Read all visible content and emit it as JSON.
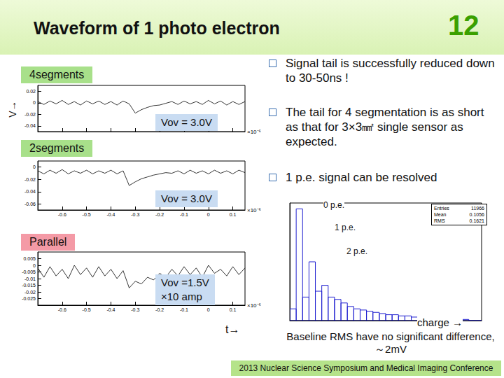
{
  "slide": {
    "title": "Waveform of 1 photo electron",
    "page": "12",
    "bullets": [
      "Signal tail is successfully reduced down to 30-50ns !",
      "The tail for 4 segmentation is as short as that for 3×3㎟ single sensor as expected.",
      "1 p.e. signal can be resolved"
    ],
    "v_arrow": "V→",
    "t_arrow": "t→",
    "note": "Baseline RMS have no significant difference, ～2mV",
    "footer": "2013 Nuclear Science Symposium and Medical Imaging Conference"
  },
  "chart_data": [
    {
      "type": "line",
      "title": "4segments",
      "annotation": [
        "Vov = 3.0V"
      ],
      "x_exponent": "×10⁻⁶",
      "color": "#000000",
      "grid": false,
      "tick_labels": "y",
      "x": [
        -0.7,
        -0.675,
        -0.65,
        -0.625,
        -0.6,
        -0.575,
        -0.55,
        -0.525,
        -0.5,
        -0.475,
        -0.45,
        -0.425,
        -0.4,
        -0.375,
        -0.35,
        -0.325,
        -0.3,
        -0.275,
        -0.25,
        -0.225,
        -0.2,
        -0.175,
        -0.15,
        -0.125,
        -0.1,
        -0.075,
        -0.05,
        -0.025,
        0,
        0.025,
        0.05,
        0.075,
        0.1,
        0.125,
        0.15
      ],
      "values": [
        0.002,
        -0.003,
        0.003,
        -0.002,
        0.004,
        -0.003,
        0.002,
        -0.004,
        0.003,
        -0.002,
        0.003,
        -0.003,
        0.002,
        -0.004,
        0.003,
        -0.002,
        -0.018,
        -0.012,
        -0.008,
        -0.005,
        -0.004,
        -0.001,
        0.002,
        -0.003,
        0.003,
        -0.002,
        0.002,
        -0.003,
        0.004,
        -0.002,
        0.003,
        -0.004,
        0.002,
        -0.003,
        0.002
      ],
      "xlim": [
        -0.7,
        0.15
      ],
      "xticks": [
        -0.6,
        -0.5,
        -0.4,
        -0.3,
        -0.2,
        -0.1,
        0,
        0.1
      ],
      "ylim": [
        -0.05,
        0.03
      ],
      "yticks": [
        0.02,
        0,
        -0.02,
        -0.04
      ]
    },
    {
      "type": "line",
      "title": "2segments",
      "annotation": [
        "Vov = 3.0V"
      ],
      "x_exponent": "×10⁻⁶",
      "color": "#000000",
      "grid": false,
      "x": [
        -0.7,
        -0.675,
        -0.65,
        -0.625,
        -0.6,
        -0.575,
        -0.55,
        -0.525,
        -0.5,
        -0.475,
        -0.45,
        -0.425,
        -0.4,
        -0.375,
        -0.35,
        -0.325,
        -0.3,
        -0.275,
        -0.25,
        -0.225,
        -0.2,
        -0.175,
        -0.15,
        -0.125,
        -0.1,
        -0.075,
        -0.05,
        -0.025,
        0,
        0.025,
        0.05,
        0.075,
        0.1,
        0.125,
        0.15
      ],
      "values": [
        -0.006,
        -0.011,
        -0.005,
        -0.01,
        -0.004,
        -0.011,
        -0.006,
        -0.01,
        -0.005,
        -0.011,
        -0.006,
        -0.01,
        -0.005,
        -0.011,
        -0.006,
        -0.03,
        -0.024,
        -0.019,
        -0.016,
        -0.013,
        -0.011,
        -0.009,
        -0.01,
        -0.006,
        -0.011,
        -0.005,
        -0.01,
        -0.006,
        -0.011,
        -0.005,
        -0.01,
        -0.006,
        -0.011,
        -0.005,
        -0.009
      ],
      "xlim": [
        -0.7,
        0.15
      ],
      "xticks": [
        -0.6,
        -0.5,
        -0.4,
        -0.3,
        -0.2,
        -0.1,
        0,
        0.1
      ],
      "ylim": [
        -0.07,
        0.01
      ],
      "yticks": [
        0,
        -0.02,
        -0.04,
        -0.06
      ]
    },
    {
      "type": "line",
      "title": "Parallel",
      "annotation": [
        "Vov =1.5V",
        "×10 amp"
      ],
      "x_exponent": "×10⁻⁶",
      "color": "#000000",
      "grid": false,
      "x": [
        -0.7,
        -0.675,
        -0.65,
        -0.625,
        -0.6,
        -0.575,
        -0.55,
        -0.525,
        -0.5,
        -0.475,
        -0.45,
        -0.425,
        -0.4,
        -0.375,
        -0.35,
        -0.325,
        -0.3,
        -0.275,
        -0.25,
        -0.225,
        -0.2,
        -0.175,
        -0.15,
        -0.125,
        -0.1,
        -0.075,
        -0.05,
        -0.025,
        0,
        0.025,
        0.05,
        0.075,
        0.1,
        0.125,
        0.15
      ],
      "values": [
        -0.002,
        -0.009,
        -0.001,
        -0.008,
        -0.003,
        -0.01,
        0,
        -0.007,
        -0.002,
        -0.009,
        -0.001,
        -0.008,
        -0.003,
        -0.01,
        -0.004,
        -0.017,
        -0.012,
        -0.014,
        -0.009,
        -0.011,
        -0.006,
        -0.009,
        -0.003,
        -0.008,
        -0.001,
        -0.007,
        -0.002,
        -0.009,
        0,
        -0.006,
        -0.003,
        -0.008,
        -0.001,
        -0.007,
        -0.002
      ],
      "xlim": [
        -0.7,
        0.15
      ],
      "xticks": [
        -0.6,
        -0.5,
        -0.4,
        -0.3,
        -0.2,
        -0.1,
        0,
        0.1
      ],
      "ylim": [
        -0.03,
        0.01
      ],
      "yticks": [
        0.005,
        0,
        -0.005,
        -0.01,
        -0.015,
        -0.02,
        -0.025
      ]
    },
    {
      "type": "histogram",
      "xlabel": "charge →",
      "annotations": [
        "0 p.e.",
        "1 p.e.",
        "2 p.e."
      ],
      "color": "#2020d0",
      "grid": false,
      "tick_labels": false,
      "stats": [
        {
          "label": "Entries",
          "value": 11966
        },
        {
          "label": "Mean",
          "value": 0.1056
        },
        {
          "label": "RMS",
          "value": 0.1621
        }
      ],
      "bins": [
        -0.05,
        0,
        0.05,
        0.1,
        0.15,
        0.2,
        0.25,
        0.3,
        0.35,
        0.4,
        0.45,
        0.5,
        0.55,
        0.6,
        0.65,
        0.7,
        0.75,
        0.8,
        0.85,
        0.9,
        0.95,
        1,
        1.05,
        1.1,
        1.15,
        1.2,
        1.25,
        1.3,
        1.35,
        1.4,
        1.45
      ],
      "counts": [
        10,
        95,
        20,
        50,
        25,
        30,
        20,
        18,
        15,
        12,
        10,
        9,
        8,
        7,
        6,
        5,
        5,
        4,
        4,
        3,
        3,
        2,
        2,
        2,
        1,
        1,
        1,
        1,
        0,
        0
      ],
      "xlim": [
        -0.05,
        1.45
      ],
      "ylim": [
        0,
        100
      ]
    }
  ]
}
